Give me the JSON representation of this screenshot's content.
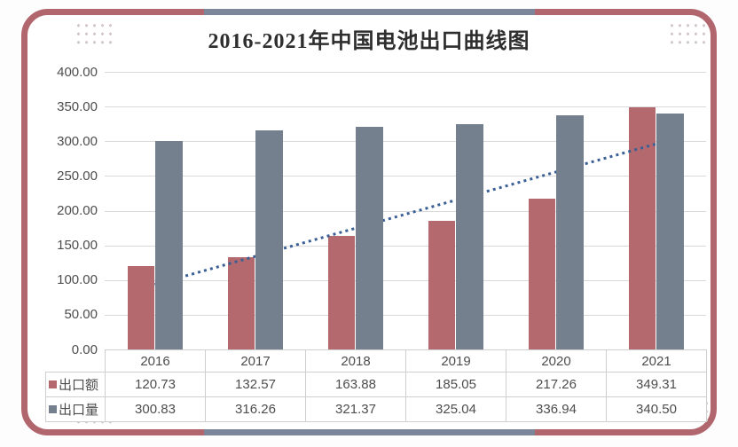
{
  "title": "2016-2021年中国电池出口曲线图",
  "frame": {
    "border_color": "#b0666c",
    "accent_band_color": "#7b869b",
    "background": "#ffffff",
    "corner_dots_color": "#d2c7ca"
  },
  "chart_data": {
    "type": "bar",
    "title": "2016-2021年中国电池出口曲线图",
    "categories": [
      "2016",
      "2017",
      "2018",
      "2019",
      "2020",
      "2021"
    ],
    "series": [
      {
        "name": "出口额",
        "color": "#b4696f",
        "values": [
          120.73,
          132.57,
          163.88,
          185.05,
          217.26,
          349.31
        ]
      },
      {
        "name": "出口量",
        "color": "#75808f",
        "values": [
          300.83,
          316.26,
          321.37,
          325.04,
          336.94,
          340.5
        ]
      }
    ],
    "trendline": {
      "series": "出口额",
      "fit": "linear",
      "style": "dotted",
      "color": "#3a5f94",
      "start_value": 93.5,
      "end_value": 296.1
    },
    "ylim": [
      0,
      400
    ],
    "ytick_step": 50,
    "ytick_labels": [
      "400.00",
      "350.00",
      "300.00",
      "250.00",
      "200.00",
      "150.00",
      "100.00",
      "50.00",
      "0.00"
    ],
    "grid": true,
    "gridline_color": "#d9d9d9",
    "legend_position": "table-left"
  },
  "table": {
    "columns": [
      "2016",
      "2017",
      "2018",
      "2019",
      "2020",
      "2021"
    ],
    "rows": [
      {
        "header": "出口额",
        "swatch_color": "#b4696f",
        "cells": [
          "120.73",
          "132.57",
          "163.88",
          "185.05",
          "217.26",
          "349.31"
        ]
      },
      {
        "header": "出口量",
        "swatch_color": "#75808f",
        "cells": [
          "300.83",
          "316.26",
          "321.37",
          "325.04",
          "336.94",
          "340.50"
        ]
      }
    ],
    "border_color": "#cfcfcf"
  }
}
